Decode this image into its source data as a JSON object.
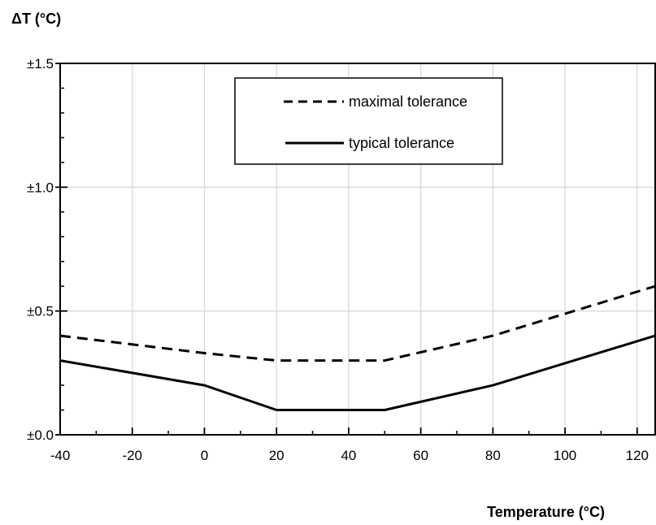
{
  "chart_data": {
    "type": "line",
    "ylabel": "ΔT (°C)",
    "xlabel": "Temperature (°C)",
    "xlim": [
      -40,
      125
    ],
    "ylim": [
      0,
      1.5
    ],
    "x_ticks": [
      -40,
      -20,
      0,
      20,
      40,
      60,
      80,
      100,
      120
    ],
    "x_tick_labels": [
      "-40",
      "-20",
      "0",
      "20",
      "40",
      "60",
      "80",
      "100",
      "120"
    ],
    "y_ticks": [
      0,
      0.5,
      1.0,
      1.5
    ],
    "y_tick_labels": [
      "±0.0",
      "±0.5",
      "±1.0",
      "±1.5"
    ],
    "grid": true,
    "legend_position": "top-center",
    "series": [
      {
        "name": "maximal tolerance",
        "style": "dashed",
        "color": "#000000",
        "x": [
          -40,
          0,
          20,
          50,
          80,
          125
        ],
        "y": [
          0.4,
          0.33,
          0.3,
          0.3,
          0.4,
          0.6
        ]
      },
      {
        "name": "typical tolerance",
        "style": "solid",
        "color": "#000000",
        "x": [
          -40,
          0,
          20,
          50,
          80,
          125
        ],
        "y": [
          0.3,
          0.2,
          0.1,
          0.1,
          0.2,
          0.4
        ]
      }
    ]
  }
}
